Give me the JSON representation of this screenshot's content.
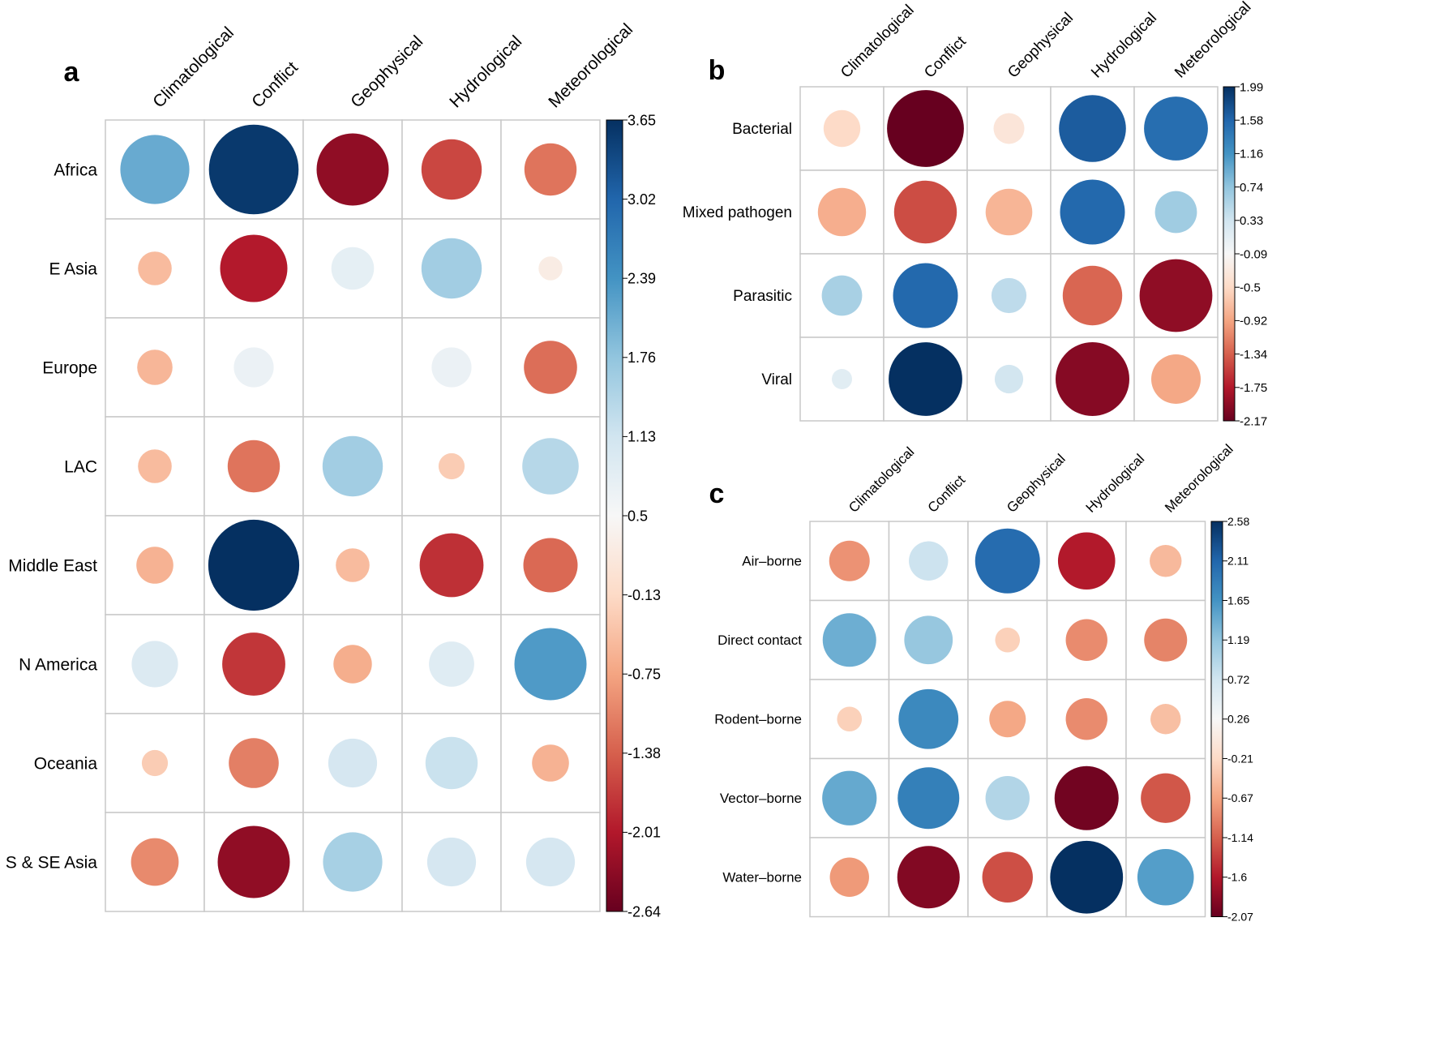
{
  "chart_data": [
    {
      "type": "heatmap",
      "panel_label": "a",
      "columns": [
        "Climatological",
        "Conflict",
        "Geophysical",
        "Hydrological",
        "Meteorological"
      ],
      "rows": [
        "Africa",
        "E Asia",
        "Europe",
        "LAC",
        "Middle East",
        "N America",
        "Oceania",
        "S & SE Asia"
      ],
      "values": [
        [
          2.1,
          3.55,
          -2.3,
          -1.6,
          -1.2
        ],
        [
          -0.5,
          -2.0,
          0.8,
          1.6,
          0.25
        ],
        [
          -0.55,
          0.7,
          null,
          0.7,
          -1.25
        ],
        [
          -0.5,
          -1.2,
          1.6,
          -0.3,
          1.4
        ],
        [
          -0.6,
          3.65,
          -0.5,
          -1.8,
          -1.3
        ],
        [
          0.95,
          -1.75,
          -0.65,
          0.9,
          2.3
        ],
        [
          -0.3,
          -1.1,
          1.05,
          1.2,
          -0.6
        ],
        [
          -1.0,
          -2.3,
          1.55,
          1.05,
          1.05
        ]
      ],
      "colorbar": {
        "min": -2.64,
        "max": 3.65,
        "ticks": [
          "3.65",
          "3.02",
          "2.39",
          "1.76",
          "1.13",
          "0.5",
          "-0.13",
          "-0.75",
          "-1.38",
          "-2.01",
          "-2.64"
        ]
      }
    },
    {
      "type": "heatmap",
      "panel_label": "b",
      "columns": [
        "Climatological",
        "Conflict",
        "Geophysical",
        "Hydrological",
        "Meteorological"
      ],
      "rows": [
        "Bacterial",
        "Mixed pathogen",
        "Parasitic",
        "Viral"
      ],
      "values": [
        [
          -0.5,
          -2.17,
          -0.35,
          1.65,
          1.5
        ],
        [
          -0.85,
          -1.45,
          -0.8,
          1.55,
          0.65
        ],
        [
          0.6,
          1.55,
          0.45,
          -1.3,
          -1.95
        ],
        [
          0.15,
          1.99,
          0.3,
          -2.0,
          -0.9
        ]
      ],
      "colorbar": {
        "min": -2.17,
        "max": 1.99,
        "ticks": [
          "1.99",
          "1.58",
          "1.16",
          "0.74",
          "0.33",
          "-0.09",
          "-0.5",
          "-0.92",
          "-1.34",
          "-1.75",
          "-2.17"
        ]
      }
    },
    {
      "type": "heatmap",
      "panel_label": "c",
      "columns": [
        "Climatological",
        "Conflict",
        "Geophysical",
        "Hydrological",
        "Meteorological"
      ],
      "rows": [
        "Air–borne",
        "Direct contact",
        "Rodent–borne",
        "Vector–borne",
        "Water–borne"
      ],
      "values": [
        [
          -0.8,
          0.75,
          2.05,
          -1.6,
          -0.5
        ],
        [
          1.4,
          1.15,
          -0.3,
          -0.85,
          -0.9
        ],
        [
          -0.3,
          1.75,
          -0.65,
          -0.85,
          -0.45
        ],
        [
          1.45,
          1.85,
          0.95,
          -2.0,
          -1.2
        ],
        [
          -0.75,
          -1.9,
          -1.25,
          2.58,
          1.55
        ]
      ],
      "colorbar": {
        "min": -2.07,
        "max": 2.58,
        "ticks": [
          "2.58",
          "2.11",
          "1.65",
          "1.19",
          "0.72",
          "0.26",
          "-0.21",
          "-0.67",
          "-1.14",
          "-1.6",
          "-2.07"
        ]
      }
    }
  ],
  "colors": {
    "scale": [
      "#67001f",
      "#b2182b",
      "#d6604d",
      "#f4a582",
      "#fddbc7",
      "#f7f7f7",
      "#d1e5f0",
      "#92c5de",
      "#4393c3",
      "#2166ac",
      "#053061"
    ],
    "grid": "#c8c8c8"
  }
}
